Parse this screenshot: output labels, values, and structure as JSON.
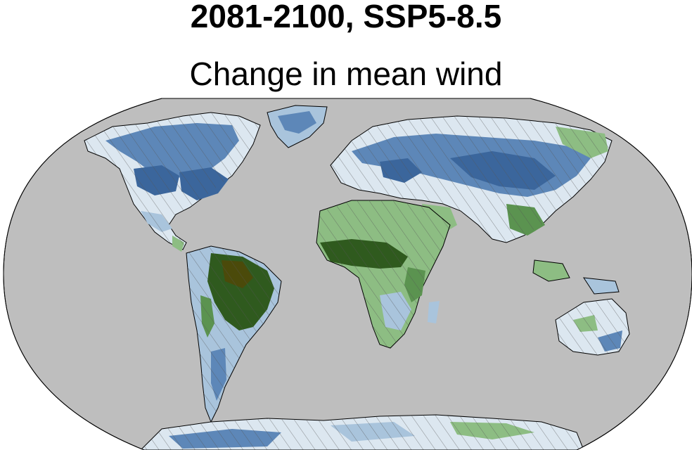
{
  "header": {
    "title": "2081-2100, SSP5-8.5",
    "subtitle": "Change in mean wind"
  },
  "colors": {
    "ocean": "#bebebe",
    "land_outline": "#000000",
    "blue_dark": "#3b669c",
    "blue_mid": "#5d87b8",
    "blue_light": "#a9c4dc",
    "blue_pale": "#dce7f0",
    "green_pale": "#cfe3c7",
    "green_light": "#8dbd83",
    "green_mid": "#5b9350",
    "green_dark": "#2f5a1e",
    "green_darkest": "#4b4a0a",
    "hatch": "#555555"
  }
}
